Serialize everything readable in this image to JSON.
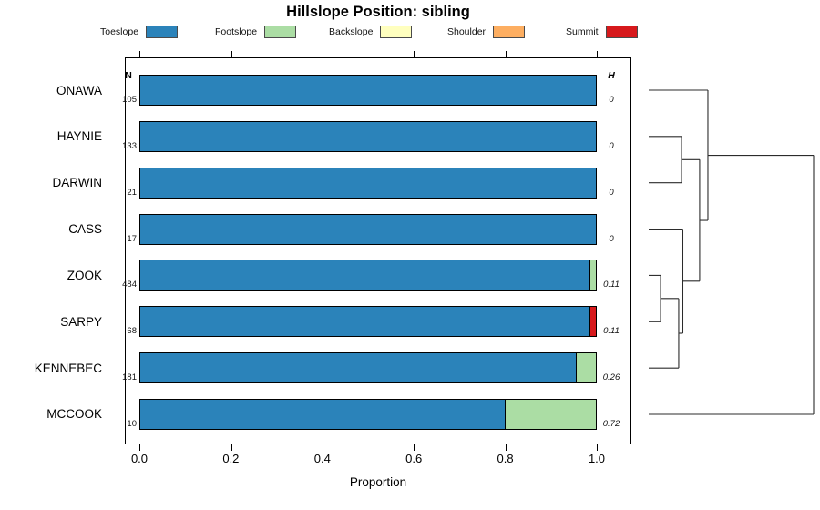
{
  "title": "Hillslope Position: sibling",
  "legend": [
    {
      "label": "Toeslope",
      "color": "#2b83ba"
    },
    {
      "label": "Footslope",
      "color": "#abdda4"
    },
    {
      "label": "Backslope",
      "color": "#ffffbf"
    },
    {
      "label": "Shoulder",
      "color": "#fdae61"
    },
    {
      "label": "Summit",
      "color": "#d7191c"
    }
  ],
  "columns": {
    "n_header": "N",
    "h_header": "H"
  },
  "x_axis": {
    "label": "Proportion",
    "ticks": [
      "0.0",
      "0.2",
      "0.4",
      "0.6",
      "0.8",
      "1.0"
    ],
    "range": [
      0,
      1
    ]
  },
  "chart_data": {
    "type": "bar",
    "orientation": "horizontal",
    "stacked": true,
    "title": "Hillslope Position: sibling",
    "xlabel": "Proportion",
    "xlim": [
      0,
      1
    ],
    "grid": false,
    "legend_position": "top",
    "series_order": [
      "Toeslope",
      "Footslope",
      "Backslope",
      "Shoulder",
      "Summit"
    ],
    "colors": {
      "Toeslope": "#2b83ba",
      "Footslope": "#abdda4",
      "Backslope": "#ffffbf",
      "Shoulder": "#fdae61",
      "Summit": "#d7191c"
    },
    "rows": [
      {
        "name": "ONAWA",
        "n": "105",
        "h": "0",
        "proportions": {
          "Toeslope": 1.0,
          "Footslope": 0,
          "Backslope": 0,
          "Shoulder": 0,
          "Summit": 0
        }
      },
      {
        "name": "HAYNIE",
        "n": "133",
        "h": "0",
        "proportions": {
          "Toeslope": 1.0,
          "Footslope": 0,
          "Backslope": 0,
          "Shoulder": 0,
          "Summit": 0
        }
      },
      {
        "name": "DARWIN",
        "n": "21",
        "h": "0",
        "proportions": {
          "Toeslope": 1.0,
          "Footslope": 0,
          "Backslope": 0,
          "Shoulder": 0,
          "Summit": 0
        }
      },
      {
        "name": "CASS",
        "n": "17",
        "h": "0",
        "proportions": {
          "Toeslope": 1.0,
          "Footslope": 0,
          "Backslope": 0,
          "Shoulder": 0,
          "Summit": 0
        }
      },
      {
        "name": "ZOOK",
        "n": "484",
        "h": "0.11",
        "proportions": {
          "Toeslope": 0.985,
          "Footslope": 0.015,
          "Backslope": 0,
          "Shoulder": 0,
          "Summit": 0
        }
      },
      {
        "name": "SARPY",
        "n": "68",
        "h": "0.11",
        "proportions": {
          "Toeslope": 0.985,
          "Footslope": 0,
          "Backslope": 0,
          "Shoulder": 0,
          "Summit": 0.015
        }
      },
      {
        "name": "KENNEBEC",
        "n": "181",
        "h": "0.26",
        "proportions": {
          "Toeslope": 0.956,
          "Footslope": 0.044,
          "Backslope": 0,
          "Shoulder": 0,
          "Summit": 0
        }
      },
      {
        "name": "MCCOOK",
        "n": "10",
        "h": "0.72",
        "proportions": {
          "Toeslope": 0.8,
          "Footslope": 0.2,
          "Backslope": 0,
          "Shoulder": 0,
          "Summit": 0
        }
      }
    ],
    "dendrogram": {
      "orientation": "right",
      "leaf_order": [
        "ONAWA",
        "HAYNIE",
        "DARWIN",
        "CASS",
        "ZOOK",
        "SARPY",
        "KENNEBEC",
        "MCCOOK"
      ],
      "merges": [
        {
          "id": "m1",
          "a": "HAYNIE",
          "b": "DARWIN",
          "height": 0.199
        },
        {
          "id": "m2",
          "a": "ZOOK",
          "b": "SARPY",
          "height": 0.072
        },
        {
          "id": "m3",
          "a": "m2",
          "b": "KENNEBEC",
          "height": 0.182
        },
        {
          "id": "m4",
          "a": "CASS",
          "b": "m3",
          "height": 0.207
        },
        {
          "id": "m5",
          "a": "m1",
          "b": "m4",
          "height": 0.309
        },
        {
          "id": "m6",
          "a": "ONAWA",
          "b": "m5",
          "height": 0.359
        },
        {
          "id": "m7",
          "a": "m6",
          "b": "MCCOOK",
          "height": 1.0
        }
      ]
    }
  }
}
